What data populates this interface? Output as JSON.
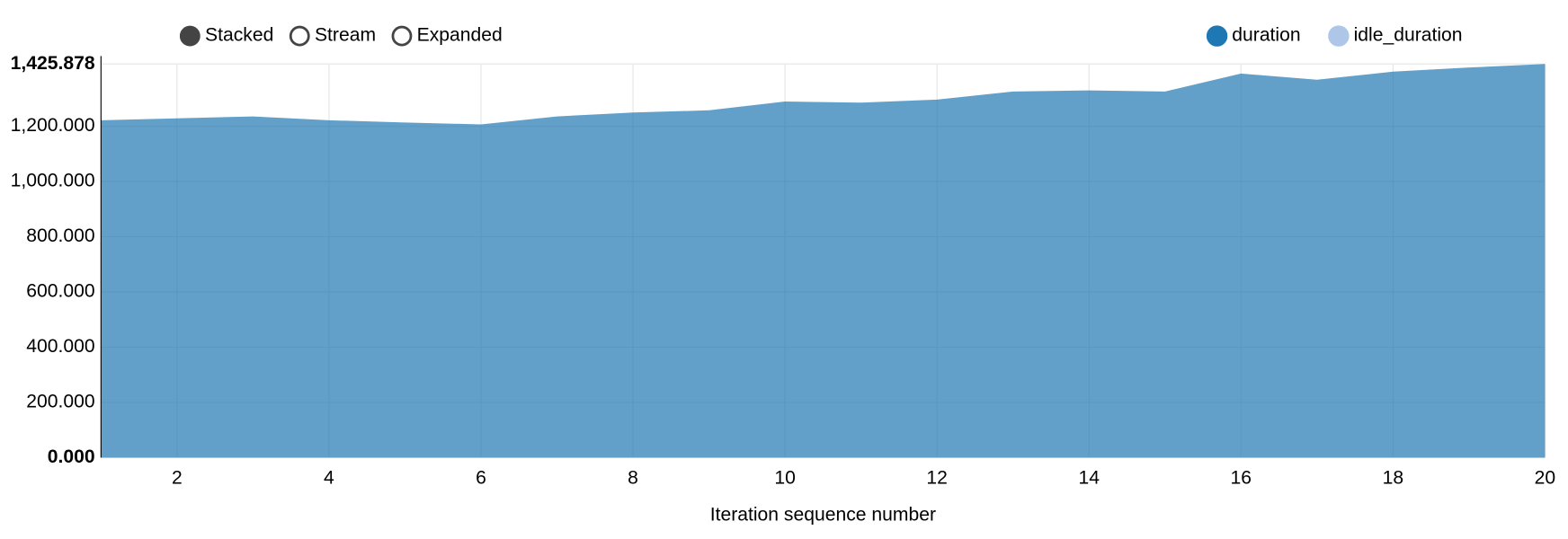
{
  "chart_data": {
    "type": "stacked-area",
    "controls": [
      "Stacked",
      "Stream",
      "Expanded"
    ],
    "selected_control": "Stacked",
    "x_label": "Iteration sequence number",
    "x": [
      1,
      2,
      3,
      4,
      5,
      6,
      7,
      8,
      9,
      10,
      11,
      12,
      13,
      14,
      15,
      16,
      17,
      18,
      19,
      20
    ],
    "series": [
      {
        "name": "duration",
        "color": "#1f77b4",
        "values": [
          1222,
          1229,
          1236,
          1222,
          1214,
          1207,
          1236,
          1250,
          1258,
          1290,
          1286,
          1297,
          1326,
          1330,
          1326,
          1391,
          1369,
          1398,
          1413,
          1425.878
        ]
      },
      {
        "name": "idle_duration",
        "color": "#aec7e8",
        "values": [
          0,
          0,
          0,
          0,
          0,
          0,
          0,
          0,
          0,
          0,
          0,
          0,
          0,
          0,
          0,
          0,
          0,
          0,
          0,
          0
        ]
      }
    ],
    "xlim": [
      1,
      20
    ],
    "xticks": [
      2,
      4,
      6,
      8,
      10,
      12,
      14,
      16,
      18,
      20
    ],
    "ylim": [
      0,
      1425.878
    ],
    "yticks": [
      {
        "value": 0,
        "label": "0.000"
      },
      {
        "value": 200,
        "label": "200.000"
      },
      {
        "value": 400,
        "label": "400.000"
      },
      {
        "value": 600,
        "label": "600.000"
      },
      {
        "value": 800,
        "label": "800.000"
      },
      {
        "value": 1000,
        "label": "1,000.000"
      },
      {
        "value": 1200,
        "label": "1,200.000"
      },
      {
        "value": 1425.878,
        "label": "1,425.878"
      }
    ],
    "grid": true
  }
}
